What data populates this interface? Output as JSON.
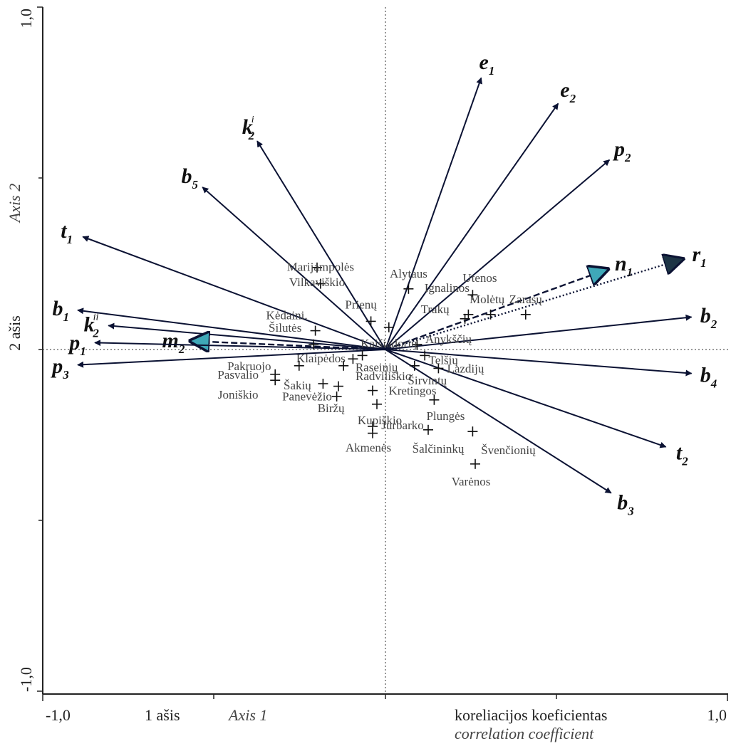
{
  "chart_data": {
    "type": "scatter",
    "xlim": [
      -1.0,
      1.0
    ],
    "ylim": [
      -1.0,
      1.0
    ],
    "x_ticks": [
      "-1,0",
      "1,0"
    ],
    "y_ticks": [
      "1,0",
      "-1,0"
    ],
    "x_axis_labels": [
      "1 ašis",
      "Axis 1"
    ],
    "y_axis_labels": [
      "2 ašis",
      "Axis 2"
    ],
    "caption_lines": [
      "koreliacijos koeficientas",
      "correlation coefficient"
    ],
    "grid": false,
    "reference_lines": "dotted lines at x=0 and y=0",
    "sites": [
      {
        "name": "Vilkaviškio",
        "x": -0.8,
        "y": 0.96
      },
      {
        "name": "Marijampolės",
        "x": -0.76,
        "y": 0.77
      },
      {
        "name": "Alytaus",
        "x": 0.27,
        "y": 0.71
      },
      {
        "name": "Utenos",
        "x": 1.02,
        "y": 0.64
      },
      {
        "name": "Ignalinos",
        "x": 0.97,
        "y": 0.41
      },
      {
        "name": "Molėtų",
        "x": 1.23,
        "y": 0.41
      },
      {
        "name": "Zarasų",
        "x": 1.64,
        "y": 0.41
      },
      {
        "name": "Trakų",
        "x": 0.93,
        "y": 0.36
      },
      {
        "name": "Prienų",
        "x": -0.17,
        "y": 0.33
      },
      {
        "name": "Kaišiadorių",
        "x": 0.04,
        "y": 0.26
      },
      {
        "name": "Kėdaini.",
        "x": -0.82,
        "y": 0.22
      },
      {
        "name": "Šilutės",
        "x": -0.84,
        "y": 0.06
      },
      {
        "name": "Anykščių",
        "x": 0.37,
        "y": 0.06
      },
      {
        "name": "Telšių",
        "x": 0.46,
        "y": -0.07
      },
      {
        "name": "Lazdijų",
        "x": 0.62,
        "y": -0.22
      },
      {
        "name": "Širvintų",
        "x": 0.34,
        "y": -0.19
      },
      {
        "name": "Klaipėdos",
        "x": -0.38,
        "y": -0.11
      },
      {
        "name": "Raseinių",
        "x": -0.27,
        "y": -0.07
      },
      {
        "name": "Radviliškio",
        "x": -0.49,
        "y": -0.19
      },
      {
        "name": "Pakruojo",
        "x": -1.01,
        "y": -0.19
      },
      {
        "name": "Pasvalio",
        "x": -1.29,
        "y": -0.29
      },
      {
        "name": "Joniškio",
        "x": -1.29,
        "y": -0.36
      },
      {
        "name": "Šakių",
        "x": -0.73,
        "y": -0.4
      },
      {
        "name": "Panevėžio",
        "x": -0.55,
        "y": -0.43
      },
      {
        "name": "Biržų",
        "x": -0.57,
        "y": -0.55
      },
      {
        "name": "Kretingos",
        "x": -0.15,
        "y": -0.48
      },
      {
        "name": "Kupiškio",
        "x": -0.1,
        "y": -0.64
      },
      {
        "name": "Plungės",
        "x": 0.57,
        "y": -0.59
      },
      {
        "name": "Jurbarko",
        "x": -0.15,
        "y": -0.9
      },
      {
        "name": "Akmenės",
        "x": -0.15,
        "y": -0.98
      },
      {
        "name": "Šalčininkų",
        "x": 0.5,
        "y": -0.94
      },
      {
        "name": "Švenčionių",
        "x": 1.02,
        "y": -0.96
      },
      {
        "name": "Varėnos",
        "x": 1.05,
        "y": -1.34
      }
    ],
    "vectors": [
      {
        "name": "e",
        "sub": "1",
        "sup": "",
        "x": 0.56,
        "y": 1.59,
        "style": "solid"
      },
      {
        "name": "e",
        "sub": "2",
        "sup": "",
        "x": 1.01,
        "y": 1.44,
        "style": "solid"
      },
      {
        "name": "p",
        "sub": "2",
        "sup": "",
        "x": 1.31,
        "y": 1.11,
        "style": "solid"
      },
      {
        "name": "k",
        "sub": "2",
        "sup": "i",
        "x": -0.75,
        "y": 1.22,
        "style": "solid"
      },
      {
        "name": "b",
        "sub": "5",
        "sup": "",
        "x": -1.07,
        "y": 0.95,
        "style": "solid"
      },
      {
        "name": "t",
        "sub": "1",
        "sup": "",
        "x": -1.77,
        "y": 0.66,
        "style": "solid"
      },
      {
        "name": "b",
        "sub": "1",
        "sup": "",
        "x": -1.8,
        "y": 0.23,
        "style": "solid"
      },
      {
        "name": "k",
        "sub": "2",
        "sup": "ii",
        "x": -1.62,
        "y": 0.14,
        "style": "solid"
      },
      {
        "name": "m",
        "sub": "2",
        "sup": "",
        "x": -1.14,
        "y": 0.05,
        "style": "dashed-filled"
      },
      {
        "name": "p",
        "sub": "1",
        "sup": "",
        "x": -1.7,
        "y": 0.04,
        "style": "solid"
      },
      {
        "name": "p",
        "sub": "3",
        "sup": "",
        "x": -1.8,
        "y": -0.09,
        "style": "solid"
      },
      {
        "name": "n",
        "sub": "1",
        "sup": "",
        "x": 1.3,
        "y": 0.47,
        "style": "dashed-filled"
      },
      {
        "name": "r",
        "sub": "1",
        "sup": "",
        "x": 1.74,
        "y": 0.53,
        "style": "dotted-filled"
      },
      {
        "name": "b",
        "sub": "2",
        "sup": "",
        "x": 1.79,
        "y": 0.19,
        "style": "solid"
      },
      {
        "name": "b",
        "sub": "4",
        "sup": "",
        "x": 1.79,
        "y": -0.14,
        "style": "solid"
      },
      {
        "name": "t",
        "sub": "2",
        "sup": "",
        "x": 1.64,
        "y": -0.57,
        "style": "solid"
      },
      {
        "name": "b",
        "sub": "3",
        "sup": "",
        "x": 1.32,
        "y": -0.84,
        "style": "solid"
      }
    ]
  }
}
